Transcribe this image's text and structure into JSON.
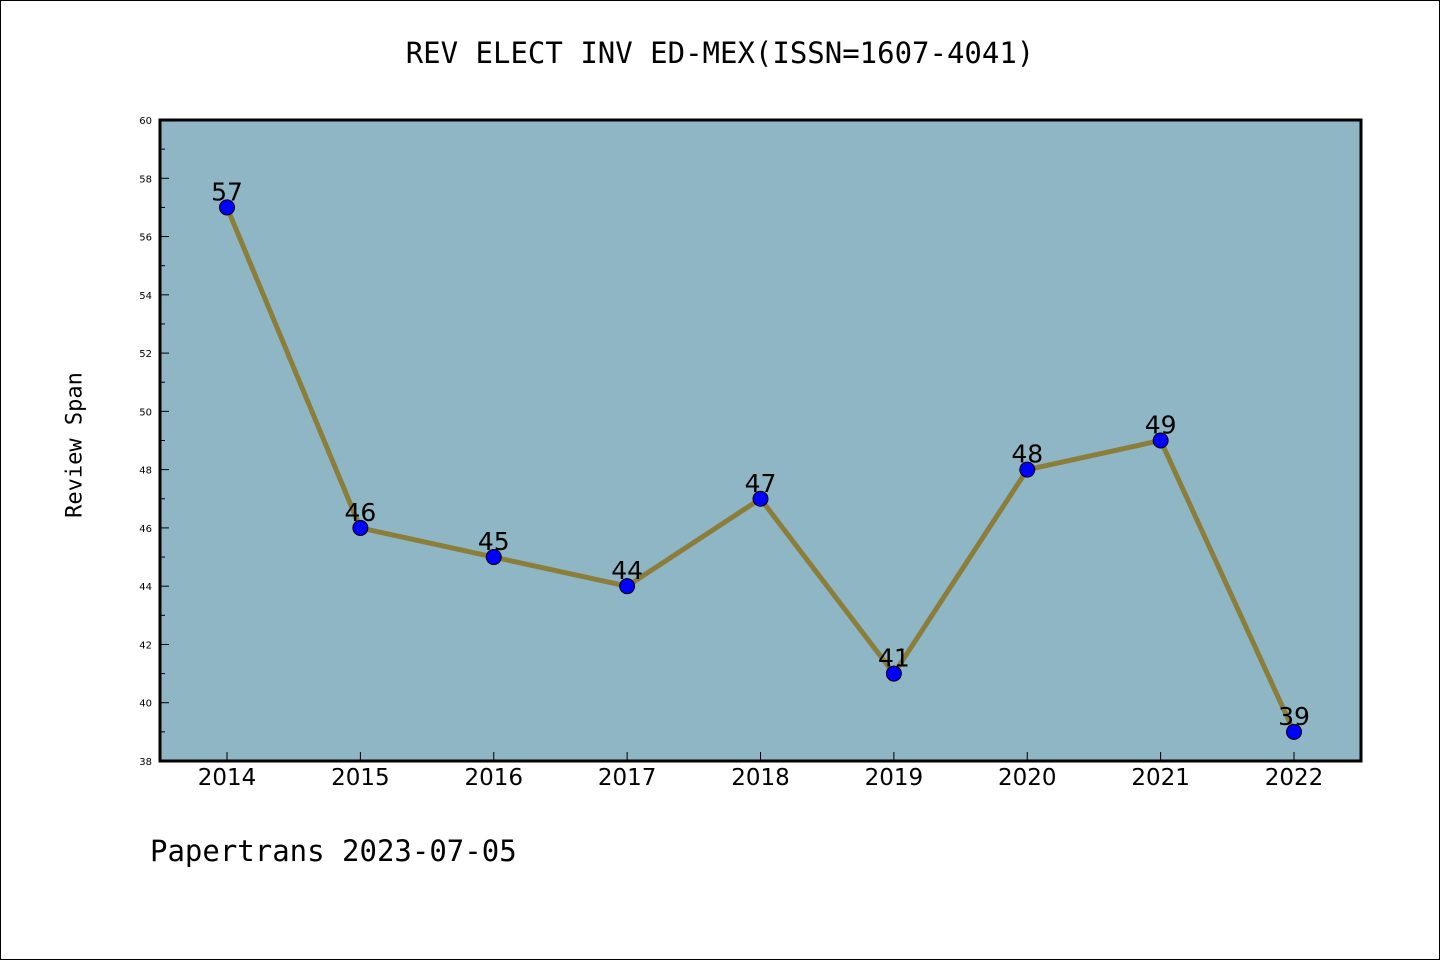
{
  "chart_data": {
    "type": "line",
    "title": "REV ELECT INV ED-MEX(ISSN=1607-4041)",
    "xlabel": "",
    "ylabel": "Review Span",
    "categories": [
      "2014",
      "2015",
      "2016",
      "2017",
      "2018",
      "2019",
      "2020",
      "2021",
      "2022"
    ],
    "series": [
      {
        "values": [
          57,
          46,
          45,
          44,
          47,
          41,
          48,
          49,
          39
        ]
      }
    ],
    "ylim": [
      38,
      60
    ],
    "yticks": [
      38,
      40,
      42,
      44,
      46,
      48,
      50,
      52,
      54,
      56,
      58,
      60
    ],
    "grid": false,
    "data_labels": true
  },
  "footer": "Papertrans 2023-07-05",
  "colors": {
    "plot_background": "#8fb6c4",
    "line": "#8b7d3a",
    "marker": "#0000ff",
    "axis": "#000000"
  }
}
